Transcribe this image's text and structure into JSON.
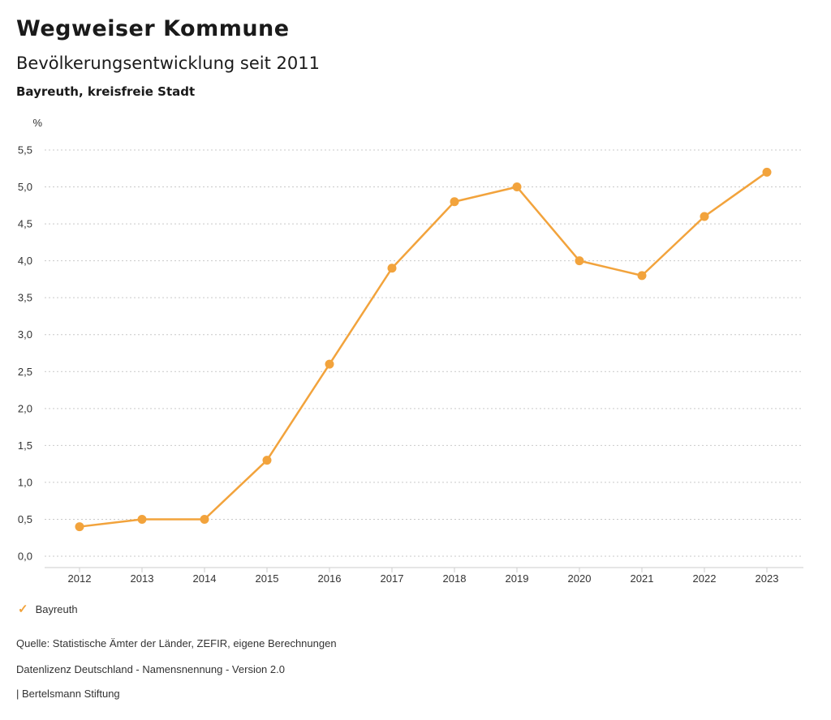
{
  "header": {
    "title": "Wegweiser Kommune",
    "subtitle": "Bevölkerungsentwicklung seit 2011",
    "region": "Bayreuth, kreisfreie Stadt"
  },
  "chart_data": {
    "type": "line",
    "title": "Bevölkerungsentwicklung seit 2011",
    "unit_label": "%",
    "xlabel": "",
    "ylabel": "%",
    "x": [
      2012,
      2013,
      2014,
      2015,
      2016,
      2017,
      2018,
      2019,
      2020,
      2021,
      2022,
      2023
    ],
    "series": [
      {
        "name": "Bayreuth",
        "color": "#F2A33C",
        "values": [
          0.4,
          0.5,
          0.5,
          1.3,
          2.6,
          3.9,
          4.8,
          5.0,
          4.0,
          3.8,
          4.6,
          5.2
        ]
      }
    ],
    "ylim": [
      0,
      5.5
    ],
    "yticks": [
      0,
      0.5,
      1.0,
      1.5,
      2.0,
      2.5,
      3.0,
      3.5,
      4.0,
      4.5,
      5.0,
      5.5
    ],
    "ytick_format": "comma-decimal-1",
    "grid": true,
    "grid_style": "dotted",
    "legend_position": "bottom-left"
  },
  "legend": {
    "check_icon": "✓",
    "items": [
      {
        "label": "Bayreuth",
        "color": "#F2A33C"
      }
    ]
  },
  "footer": {
    "source": "Quelle: Statistische Ämter der Länder, ZEFIR, eigene Berechnungen",
    "license": "Datenlizenz Deutschland - Namensnennung - Version 2.0",
    "publisher": "| Bertelsmann Stiftung"
  },
  "colors": {
    "accent": "#F2A33C",
    "grid": "#c9c9c9",
    "axis": "#cccccc",
    "tick_text": "#333333"
  }
}
